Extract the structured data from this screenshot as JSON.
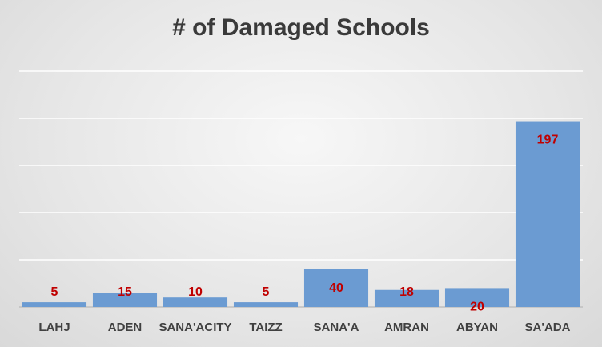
{
  "chart_data": {
    "type": "bar",
    "title": "# of Damaged Schools",
    "categories": [
      "LAHJ",
      "ADEN",
      "SANA'ACITY",
      "TAIZZ",
      "SANA'A",
      "AMRAN",
      "ABYAN",
      "SA'ADA"
    ],
    "values": [
      5,
      15,
      10,
      5,
      40,
      18,
      20,
      197
    ],
    "ylim": [
      0,
      250
    ],
    "grid": true,
    "bar_color": "#6b9bd2",
    "label_color": "#c00000"
  }
}
